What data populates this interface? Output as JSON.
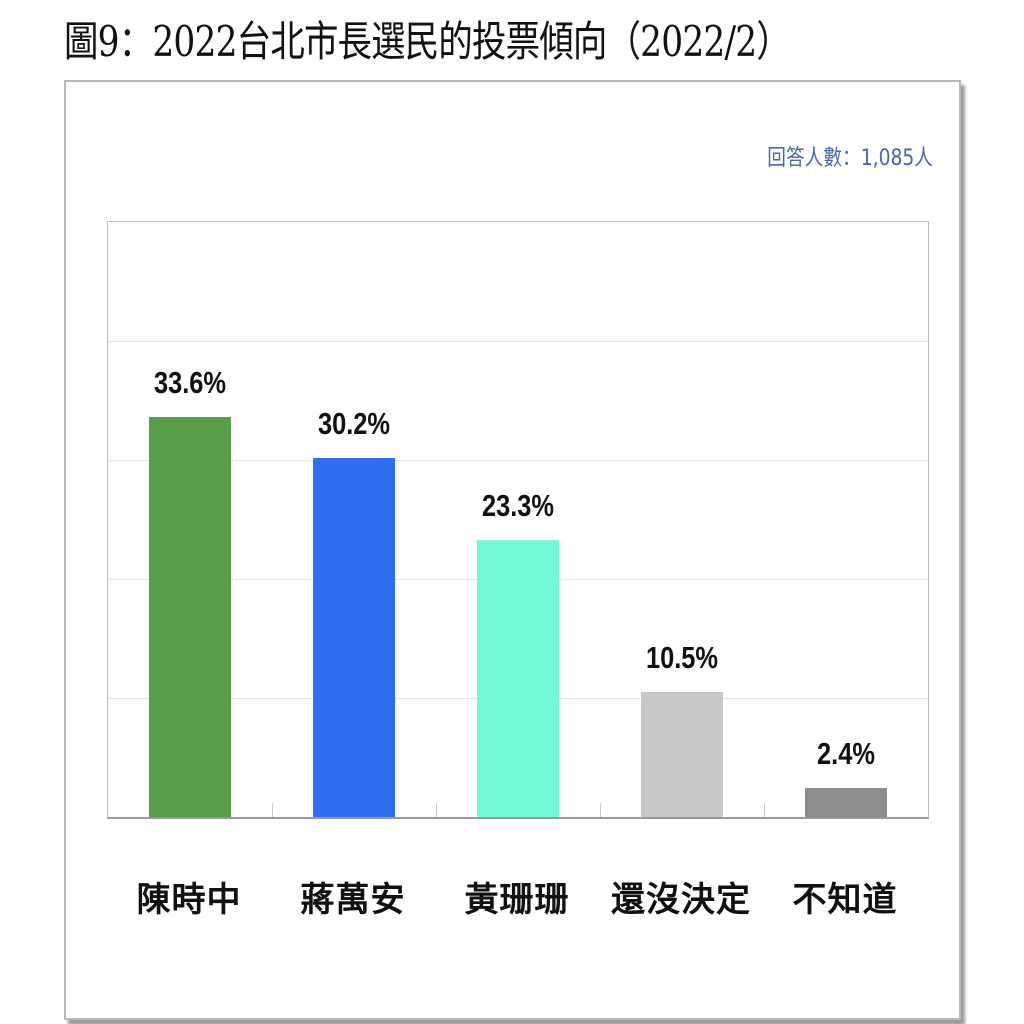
{
  "title": "圖9：2022台北市長選民的投票傾向（2022/2）",
  "respondents_label": "回答人數：1,085人",
  "chart_data": {
    "type": "bar",
    "title": "圖9：2022台北市長選民的投票傾向（2022/2）",
    "subtitle": "回答人數：1,085人",
    "categories": [
      "陳時中",
      "蔣萬安",
      "黃珊珊",
      "還沒決定",
      "不知道"
    ],
    "values": [
      33.6,
      30.2,
      23.3,
      10.5,
      2.4
    ],
    "labels": [
      "33.6%",
      "30.2%",
      "23.3%",
      "10.5%",
      "2.4%"
    ],
    "colors": [
      "#5a9e4b",
      "#2f6ef0",
      "#76f7d8",
      "#c8c8c8",
      "#8c8c8c"
    ],
    "xlabel": "",
    "ylabel": "",
    "ylim": [
      0,
      50
    ],
    "grid": true,
    "gridlines": [
      10,
      20,
      30,
      40
    ],
    "y_axis_ticks_visible": false,
    "legend": "none"
  }
}
